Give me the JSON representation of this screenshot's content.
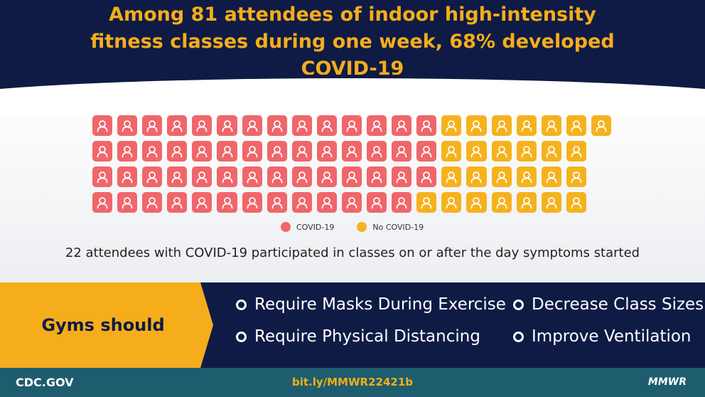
{
  "header": {
    "title": "Among 81 attendees of indoor high-intensity fitness classes during one week, 68% developed COVID-19"
  },
  "colors": {
    "navy": "#0f1b45",
    "orange": "#f6ad1b",
    "covid": "#f0666a",
    "no_covid": "#f6b21d",
    "footer_teal": "#1d5d6e"
  },
  "chart_data": {
    "type": "pictogram",
    "total": 81,
    "percent_covid": 68,
    "rows": [
      {
        "covid": 14,
        "no_covid": 7
      },
      {
        "covid": 14,
        "no_covid": 6
      },
      {
        "covid": 14,
        "no_covid": 6
      },
      {
        "covid": 13,
        "no_covid": 7
      }
    ],
    "legend": [
      {
        "label": "COVID-19",
        "color": "#f0666a"
      },
      {
        "label": "No COVID-19",
        "color": "#f6b21d"
      }
    ],
    "icon": "person-icon"
  },
  "note": "22 attendees with COVID-19 participated in classes on or after the day symptoms started",
  "recommendations": {
    "label": "Gyms should",
    "items": [
      "Require Masks During Exercise",
      "Decrease Class Sizes",
      "Require Physical Distancing",
      "Improve Ventilation"
    ]
  },
  "footer": {
    "site": "CDC.GOV",
    "link": "bit.ly/MMWR22421b",
    "brand": "MMWR"
  }
}
